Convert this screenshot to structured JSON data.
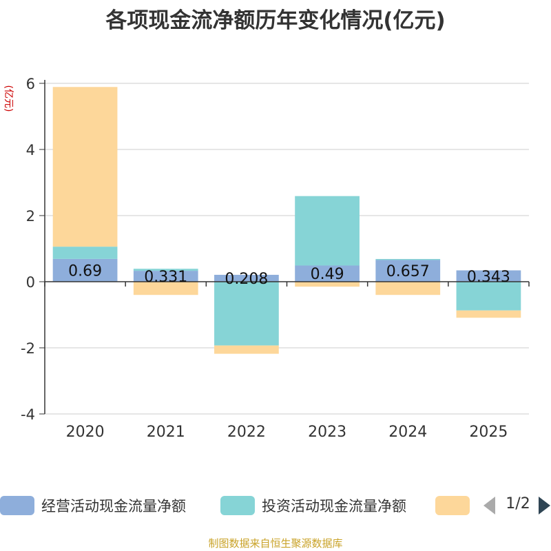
{
  "chart_data": {
    "type": "bar",
    "stacked": true,
    "title": "各项现金流净额历年变化情况(亿元)",
    "ylabel": "(亿元)",
    "ylim": [
      -4,
      6
    ],
    "yticks": [
      -4,
      -2,
      0,
      2,
      4,
      6
    ],
    "grid": true,
    "categories": [
      "2020",
      "2021",
      "2022",
      "2023",
      "2024",
      "2025"
    ],
    "series": [
      {
        "name": "经营活动现金流量净额",
        "color": "#8eaedb",
        "values": [
          0.69,
          0.331,
          0.208,
          0.49,
          0.657,
          0.343
        ]
      },
      {
        "name": "投资活动现金流量净额",
        "color": "#86d4d6",
        "values": [
          0.37,
          0.06,
          -1.93,
          2.1,
          0.03,
          -0.87
        ]
      },
      {
        "name": "",
        "color": "#fdd79a",
        "values": [
          4.83,
          -0.4,
          -0.25,
          -0.15,
          -0.4,
          -0.22
        ]
      }
    ],
    "data_labels": [
      "0.69",
      "0.331",
      "0.208",
      "0.49",
      "0.657",
      "0.343"
    ],
    "legend_position": "bottom"
  },
  "legend": {
    "page_text": "1/2"
  },
  "footer": {
    "source": "制图数据来自恒生聚源数据库"
  }
}
